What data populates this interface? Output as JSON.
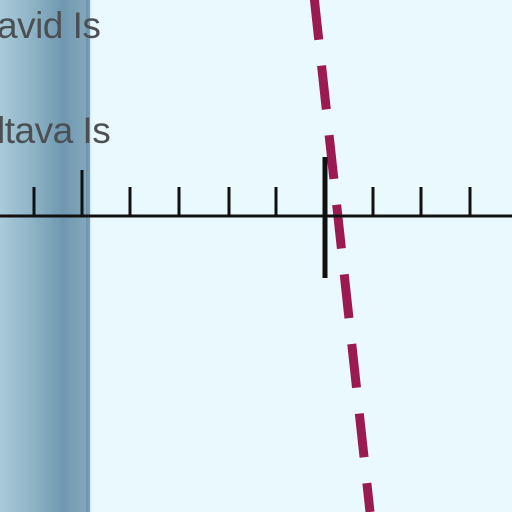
{
  "map": {
    "labels": [
      {
        "text": "avid Is"
      },
      {
        "text": "ltava Is"
      }
    ],
    "colors": {
      "water": "#eaf9fd",
      "land": "#7fa5bb",
      "scale_bar": "#111111",
      "boundary_line": "#9b1a52",
      "label_text": "#4b5054"
    }
  }
}
